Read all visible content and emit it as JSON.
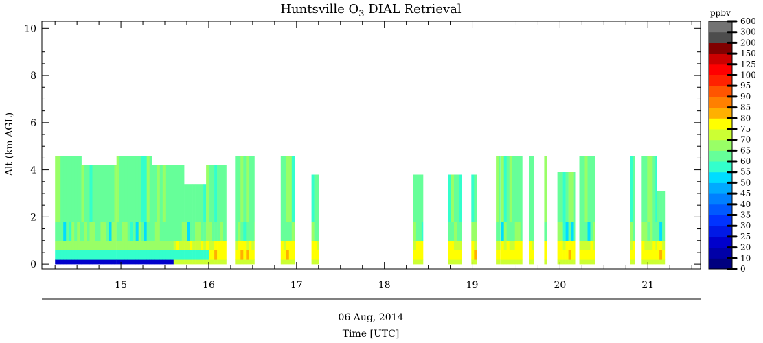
{
  "chart_data": {
    "type": "heatmap",
    "title": "Huntsville O",
    "title_sub": "3",
    "title_rest": " DIAL Retrieval",
    "ylabel": "Alt (km AGL)",
    "xlabel_date": "06 Aug, 2014",
    "xlabel": "Time [UTC]",
    "xlim": [
      14.1,
      21.6
    ],
    "ylim": [
      -0.2,
      10.3
    ],
    "x_ticks": [
      15,
      16,
      17,
      18,
      19,
      20,
      21
    ],
    "y_ticks": [
      0,
      2,
      4,
      6,
      8,
      10
    ],
    "colorbar_unit": "ppbv",
    "colorbar_levels": [
      "0",
      "10",
      "20",
      "25",
      "30",
      "35",
      "40",
      "45",
      "50",
      "55",
      "60",
      "65",
      "70",
      "75",
      "80",
      "85",
      "90",
      "95",
      "100",
      "125",
      "150",
      "200",
      "300",
      "600"
    ],
    "colorbar_colors": [
      "#00007f",
      "#0000a8",
      "#0000cc",
      "#0019e6",
      "#0033ff",
      "#0059ff",
      "#0080ff",
      "#00aaff",
      "#00ddff",
      "#33ffcc",
      "#66ff99",
      "#99ff66",
      "#ccff33",
      "#ffff00",
      "#ffb000",
      "#ff8000",
      "#ff5500",
      "#ff2200",
      "#ff0000",
      "#cc0000",
      "#800000",
      "#4d4d4d",
      "#737373",
      "#999999",
      "#bdbdbd",
      "#dddddd"
    ],
    "profile_layers_ppbv": [
      {
        "alt": [
          0.0,
          0.2
        ],
        "value": 20
      },
      {
        "alt": [
          0.2,
          0.6
        ],
        "value": 55
      },
      {
        "alt": [
          0.6,
          1.0
        ],
        "value": 65
      },
      {
        "alt": [
          1.0,
          1.8
        ],
        "value": 60
      },
      {
        "alt": [
          1.8,
          4.6
        ],
        "value": 60
      }
    ],
    "segments": [
      {
        "t": [
          14.25,
          14.55
        ],
        "top": 4.6
      },
      {
        "t": [
          14.55,
          14.95
        ],
        "top": 4.2
      },
      {
        "t": [
          14.95,
          15.35
        ],
        "top": 4.6
      },
      {
        "t": [
          15.35,
          15.72
        ],
        "top": 4.2
      },
      {
        "t": [
          15.72,
          15.97
        ],
        "top": 3.4
      },
      {
        "t": [
          15.97,
          16.2
        ],
        "top": 4.2
      },
      {
        "t": [
          16.3,
          16.52
        ],
        "top": 4.6
      },
      {
        "t": [
          16.82,
          16.98
        ],
        "top": 4.6
      },
      {
        "t": [
          17.17,
          17.25
        ],
        "top": 3.8
      },
      {
        "t": [
          18.33,
          18.44
        ],
        "top": 3.8
      },
      {
        "t": [
          18.73,
          18.88
        ],
        "top": 3.8
      },
      {
        "t": [
          18.99,
          19.05
        ],
        "top": 3.8
      },
      {
        "t": [
          19.27,
          19.32
        ],
        "top": 4.6
      },
      {
        "t": [
          19.33,
          19.57
        ],
        "top": 4.6
      },
      {
        "t": [
          19.65,
          19.7
        ],
        "top": 4.6
      },
      {
        "t": [
          19.82,
          19.85
        ],
        "top": 4.6
      },
      {
        "t": [
          19.97,
          20.17
        ],
        "top": 3.9
      },
      {
        "t": [
          20.22,
          20.4
        ],
        "top": 4.6
      },
      {
        "t": [
          20.8,
          20.85
        ],
        "top": 4.6
      },
      {
        "t": [
          20.93,
          21.1
        ],
        "top": 4.6
      },
      {
        "t": [
          21.1,
          21.2
        ],
        "top": 3.1
      }
    ]
  }
}
